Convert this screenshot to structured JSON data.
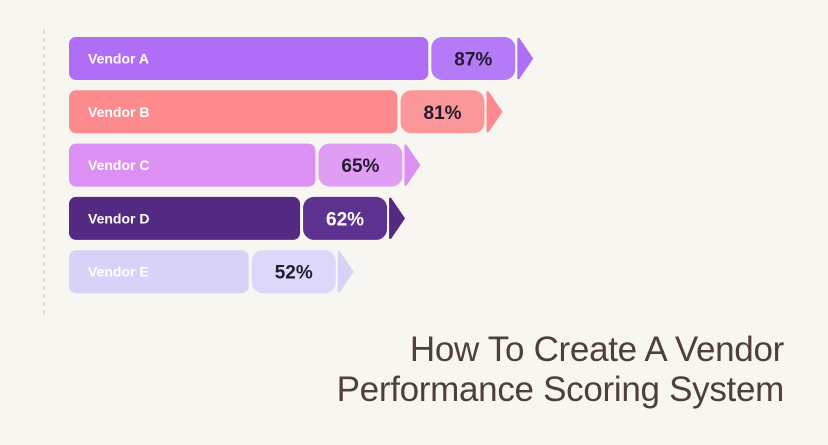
{
  "title": {
    "line1": "How To Create A Vendor",
    "line2": "Performance Scoring System"
  },
  "chart_data": {
    "type": "bar",
    "orientation": "horizontal",
    "categories": [
      "Vendor A",
      "Vendor B",
      "Vendor C",
      "Vendor D",
      "Vendor E"
    ],
    "values": [
      87,
      81,
      65,
      62,
      52
    ],
    "value_labels": [
      "87%",
      "81%",
      "65%",
      "62%",
      "52%"
    ],
    "colors": [
      "#b06ef6",
      "#fd8a8d",
      "#dc90f3",
      "#552a83",
      "#d8d2f8"
    ],
    "pill_colors": [
      "#b57af7",
      "#fc9799",
      "#e09df4",
      "#5d3190",
      "#ddd7f9"
    ],
    "label_colors": [
      "#ffffff",
      "#ffffff",
      "#ffffff",
      "#ffffff",
      "#ffffff"
    ],
    "value_text_colors": [
      "#231a30",
      "#231a30",
      "#231a30",
      "#ffffff",
      "#231a30"
    ],
    "xlim": [
      0,
      100
    ],
    "grid": false
  }
}
